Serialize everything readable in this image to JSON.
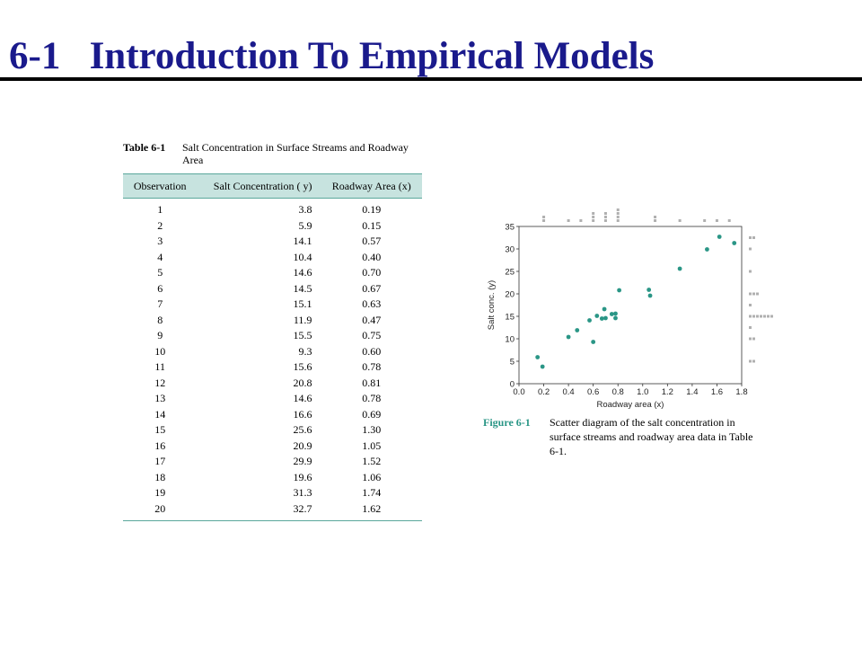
{
  "slide": {
    "title": "6-1   Introduction To Empirical Models"
  },
  "table": {
    "number": "Table 6-1",
    "caption": "Salt Concentration in Surface Streams and Roadway Area",
    "headers": [
      "Observation",
      "Salt Concentration ( y)",
      "Roadway Area (x)"
    ],
    "rows": [
      [
        "1",
        "3.8",
        "0.19"
      ],
      [
        "2",
        "5.9",
        "0.15"
      ],
      [
        "3",
        "14.1",
        "0.57"
      ],
      [
        "4",
        "10.4",
        "0.40"
      ],
      [
        "5",
        "14.6",
        "0.70"
      ],
      [
        "6",
        "14.5",
        "0.67"
      ],
      [
        "7",
        "15.1",
        "0.63"
      ],
      [
        "8",
        "11.9",
        "0.47"
      ],
      [
        "9",
        "15.5",
        "0.75"
      ],
      [
        "10",
        "9.3",
        "0.60"
      ],
      [
        "11",
        "15.6",
        "0.78"
      ],
      [
        "12",
        "20.8",
        "0.81"
      ],
      [
        "13",
        "14.6",
        "0.78"
      ],
      [
        "14",
        "16.6",
        "0.69"
      ],
      [
        "15",
        "25.6",
        "1.30"
      ],
      [
        "16",
        "20.9",
        "1.05"
      ],
      [
        "17",
        "29.9",
        "1.52"
      ],
      [
        "18",
        "19.6",
        "1.06"
      ],
      [
        "19",
        "31.3",
        "1.74"
      ],
      [
        "20",
        "32.7",
        "1.62"
      ]
    ]
  },
  "figure": {
    "label": "Figure 6-1",
    "caption": "Scatter diagram of the salt concentration in surface streams and roadway area data in Table 6-1."
  },
  "colors": {
    "title": "#1a1a8c",
    "accent": "#2a9686",
    "header_fill": "#c7e3df",
    "dot_plot": "#b0b0b0"
  },
  "chart_data": {
    "type": "scatter",
    "xlabel": "Roadway area (x)",
    "ylabel": "Salt conc. (y)",
    "xlim": [
      0,
      1.8
    ],
    "ylim": [
      0,
      35
    ],
    "xticks": [
      "0.0",
      "0.2",
      "0.4",
      "0.6",
      "0.8",
      "1.0",
      "1.2",
      "1.4",
      "1.6",
      "1.8"
    ],
    "yticks": [
      "0",
      "5",
      "10",
      "15",
      "20",
      "25",
      "30",
      "35"
    ],
    "marginal_dot_plots": true,
    "points": [
      {
        "x": 0.19,
        "y": 3.8
      },
      {
        "x": 0.15,
        "y": 5.9
      },
      {
        "x": 0.57,
        "y": 14.1
      },
      {
        "x": 0.4,
        "y": 10.4
      },
      {
        "x": 0.7,
        "y": 14.6
      },
      {
        "x": 0.67,
        "y": 14.5
      },
      {
        "x": 0.63,
        "y": 15.1
      },
      {
        "x": 0.47,
        "y": 11.9
      },
      {
        "x": 0.75,
        "y": 15.5
      },
      {
        "x": 0.6,
        "y": 9.3
      },
      {
        "x": 0.78,
        "y": 15.6
      },
      {
        "x": 0.81,
        "y": 20.8
      },
      {
        "x": 0.78,
        "y": 14.6
      },
      {
        "x": 0.69,
        "y": 16.6
      },
      {
        "x": 1.3,
        "y": 25.6
      },
      {
        "x": 1.05,
        "y": 20.9
      },
      {
        "x": 1.52,
        "y": 29.9
      },
      {
        "x": 1.06,
        "y": 19.6
      },
      {
        "x": 1.74,
        "y": 31.3
      },
      {
        "x": 1.62,
        "y": 32.7
      }
    ]
  }
}
